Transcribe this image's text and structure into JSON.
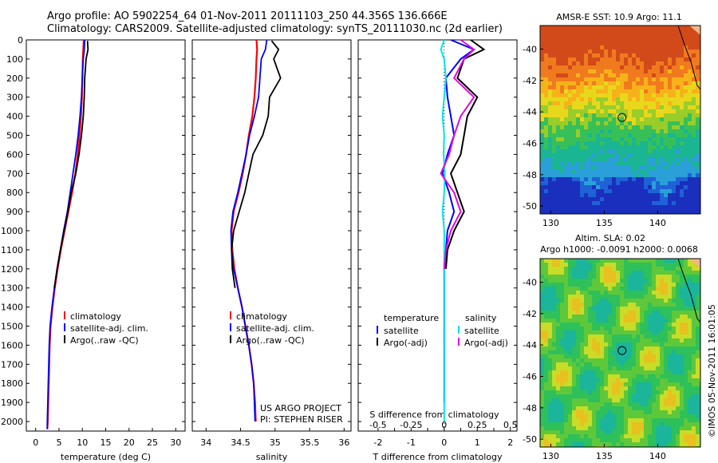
{
  "title_line1": "Argo profile: AO 5902254_64 01-Nov-2011 20111103_250 44.356S 136.666E",
  "title_line2": "Climatology: CARS2009. Satellite-adjusted climatology: synTS_20111030.nc (2d earlier)",
  "chart_data": [
    {
      "type": "line",
      "panel": "temperature",
      "xlabel": "temperature (deg C)",
      "ylabel": "",
      "xlim": [
        -2,
        32
      ],
      "ylim": [
        2050,
        0
      ],
      "xticks": [
        "0",
        "5",
        "10",
        "15",
        "20",
        "25",
        "30"
      ],
      "yticks": [
        "0",
        "100",
        "200",
        "300",
        "400",
        "500",
        "600",
        "700",
        "800",
        "900",
        "1000",
        "1100",
        "1200",
        "1300",
        "1400",
        "1500",
        "1600",
        "1700",
        "1800",
        "1900",
        "2000"
      ],
      "legend": [
        "climatology",
        "satellite-adj. clim.",
        "Argo(..raw -QC)"
      ],
      "colors": [
        "#ff0000",
        "#0000ff",
        "#000000"
      ],
      "series": [
        {
          "name": "climatology",
          "x": [
            10.3,
            10.2,
            10.1,
            10.0,
            9.9,
            9.7,
            9.4,
            9.0,
            8.5,
            7.8,
            7.0,
            6.2,
            5.4,
            4.7,
            4.1,
            3.6,
            3.2,
            3.0,
            2.9,
            2.8,
            2.7,
            2.6,
            2.5
          ],
          "y": [
            0,
            50,
            100,
            200,
            300,
            400,
            500,
            600,
            700,
            800,
            900,
            1000,
            1100,
            1200,
            1300,
            1400,
            1500,
            1600,
            1700,
            1800,
            1900,
            2000,
            2040
          ]
        },
        {
          "name": "satellite-adj. clim.",
          "x": [
            10.5,
            10.4,
            10.2,
            10.0,
            9.8,
            9.5,
            9.1,
            8.6,
            8.0,
            7.4,
            6.8,
            6.0,
            5.3,
            4.6,
            4.0,
            3.5,
            3.1,
            2.9,
            2.8,
            2.7,
            2.6,
            2.5,
            2.5
          ],
          "y": [
            0,
            50,
            100,
            200,
            300,
            400,
            500,
            600,
            700,
            800,
            900,
            1000,
            1100,
            1200,
            1300,
            1400,
            1500,
            1600,
            1700,
            1800,
            1900,
            2000,
            2040
          ]
        },
        {
          "name": "Argo(..raw -QC)",
          "x": [
            11.1,
            11.2,
            10.8,
            10.5,
            10.4,
            10.2,
            9.8,
            9.3,
            8.6,
            7.6,
            6.9,
            6.1,
            5.3,
            4.6,
            4.0
          ],
          "y": [
            5,
            50,
            100,
            200,
            300,
            400,
            500,
            600,
            700,
            800,
            900,
            1000,
            1100,
            1200,
            1300
          ]
        }
      ]
    },
    {
      "type": "line",
      "panel": "salinity",
      "xlabel": "salinity",
      "ylabel": "",
      "xlim": [
        33.8,
        36.1
      ],
      "ylim": [
        2050,
        0
      ],
      "xticks": [
        "34",
        "34.5",
        "35",
        "35.5",
        "36"
      ],
      "legend": [
        "climatology",
        "satellite-adj. clim.",
        "Argo(..raw -QC)"
      ],
      "colors": [
        "#ff0000",
        "#0000ff",
        "#000000"
      ],
      "annotation": [
        "US ARGO PROJECT",
        "PI: STEPHEN RISER"
      ],
      "series": [
        {
          "name": "climatology",
          "x": [
            34.73,
            34.74,
            34.73,
            34.72,
            34.7,
            34.67,
            34.62,
            34.58,
            34.53,
            34.47,
            34.4,
            34.37,
            34.38,
            34.41,
            34.46,
            34.52,
            34.57,
            34.62,
            34.66,
            34.69,
            34.71,
            34.72
          ],
          "y": [
            0,
            50,
            100,
            200,
            300,
            400,
            500,
            600,
            700,
            800,
            900,
            1000,
            1100,
            1200,
            1300,
            1400,
            1500,
            1600,
            1700,
            1800,
            1900,
            2000
          ]
        },
        {
          "name": "satellite-adj. clim.",
          "x": [
            34.88,
            34.86,
            34.8,
            34.78,
            34.76,
            34.7,
            34.63,
            34.58,
            34.52,
            34.46,
            34.39,
            34.36,
            34.37,
            34.4,
            34.46,
            34.52,
            34.57,
            34.62,
            34.66,
            34.69,
            34.7,
            34.71
          ],
          "y": [
            0,
            50,
            100,
            200,
            300,
            400,
            500,
            600,
            700,
            800,
            900,
            1000,
            1100,
            1200,
            1300,
            1400,
            1500,
            1600,
            1700,
            1800,
            1900,
            2000
          ]
        },
        {
          "name": "Argo(..raw -QC)",
          "x": [
            34.95,
            35.05,
            34.98,
            35.08,
            34.92,
            34.9,
            34.82,
            34.68,
            34.62,
            34.56,
            34.48,
            34.4,
            34.37,
            34.38,
            34.42
          ],
          "y": [
            5,
            50,
            100,
            200,
            300,
            400,
            500,
            600,
            700,
            800,
            900,
            1000,
            1100,
            1200,
            1300
          ]
        }
      ]
    },
    {
      "type": "line",
      "panel": "difference",
      "xlabel": "T difference from climatology",
      "xlabel2": "S difference from climatology",
      "xlim": [
        -2.6,
        2.2
      ],
      "ylim": [
        2050,
        0
      ],
      "xticks": [
        "-2",
        "-1.5",
        "-1",
        "-0.5",
        "0",
        "0.5",
        "1",
        "1.5",
        "2"
      ],
      "xticks_s": [
        "-0.5",
        "-0.25",
        "0",
        "0.25",
        "0.5"
      ],
      "legend_t_title": "temperature",
      "legend_t": [
        "satellite",
        "Argo(-adj)"
      ],
      "legend_s_title": "salinity",
      "legend_s": [
        "satellite",
        "Argo(-adj)"
      ],
      "colors": [
        "#0000ff",
        "#000000",
        "#00e5ee",
        "#e500e5"
      ],
      "series": [
        {
          "name": "satellite",
          "x": [
            0.2,
            0.9,
            0.5,
            0.05,
            0.1,
            0.2,
            0.3,
            0.1,
            -0.05,
            0.15,
            0.3,
            0.1,
            0.05,
            0.0,
            0.0,
            0.0,
            0.0,
            0.0,
            0.0,
            0.0
          ],
          "y": [
            0,
            50,
            100,
            200,
            300,
            400,
            500,
            600,
            700,
            800,
            900,
            1000,
            1100,
            1200,
            1300,
            1400,
            1500,
            1600,
            1700,
            1900
          ]
        },
        {
          "name": "Argo(-adj)",
          "x": [
            0.8,
            1.2,
            0.6,
            0.4,
            1.0,
            0.7,
            0.6,
            0.5,
            0.2,
            0.4,
            0.6,
            0.3,
            0.1,
            0.05
          ],
          "y": [
            0,
            50,
            100,
            200,
            300,
            400,
            500,
            600,
            700,
            800,
            900,
            1000,
            1100,
            1200
          ]
        },
        {
          "name": "satellite",
          "x": [
            0.0,
            -0.1,
            0.0,
            0.05,
            0.0,
            -0.05,
            0.0,
            -0.02,
            0.02,
            0.0,
            -0.05,
            0.0,
            0.0,
            0.0,
            0.0,
            0.0,
            0.0,
            0.0
          ],
          "y": [
            0,
            50,
            100,
            200,
            300,
            400,
            500,
            600,
            700,
            800,
            900,
            1000,
            1100,
            1200,
            1400,
            1600,
            1800,
            2000
          ]
        },
        {
          "name": "Argo(-adj)",
          "x": [
            0.5,
            0.9,
            0.6,
            0.3,
            0.9,
            0.5,
            0.3,
            0.15,
            -0.1,
            0.3,
            0.5,
            0.2,
            0.05,
            0.0
          ],
          "y": [
            0,
            50,
            100,
            200,
            300,
            400,
            500,
            600,
            700,
            800,
            900,
            1000,
            1100,
            1200
          ]
        }
      ]
    },
    {
      "type": "heatmap",
      "panel": "sst-map",
      "title": "AMSR-E SST: 10.9 Argo: 11.1",
      "xticks": [
        "130",
        "135",
        "140"
      ],
      "yticks": [
        "-40",
        "-42",
        "-44",
        "-46",
        "-48",
        "-50"
      ],
      "xlim": [
        129,
        144
      ],
      "ylim": [
        -50.5,
        -38.5
      ],
      "argo_position": [
        136.666,
        -44.356
      ]
    },
    {
      "type": "heatmap",
      "panel": "sla-map",
      "title": "Altim. SLA: 0.02",
      "subtitle": "Argo h1000: -0.0091 h2000: 0.0068",
      "xticks": [
        "130",
        "135",
        "140"
      ],
      "yticks": [
        "-40",
        "-42",
        "-44",
        "-46",
        "-48",
        "-50"
      ],
      "xlim": [
        129,
        144
      ],
      "ylim": [
        -50.5,
        -38.5
      ],
      "argo_position": [
        136.666,
        -44.356
      ]
    }
  ],
  "credit": "©IMOS 05-Nov-2011 16:01:05"
}
